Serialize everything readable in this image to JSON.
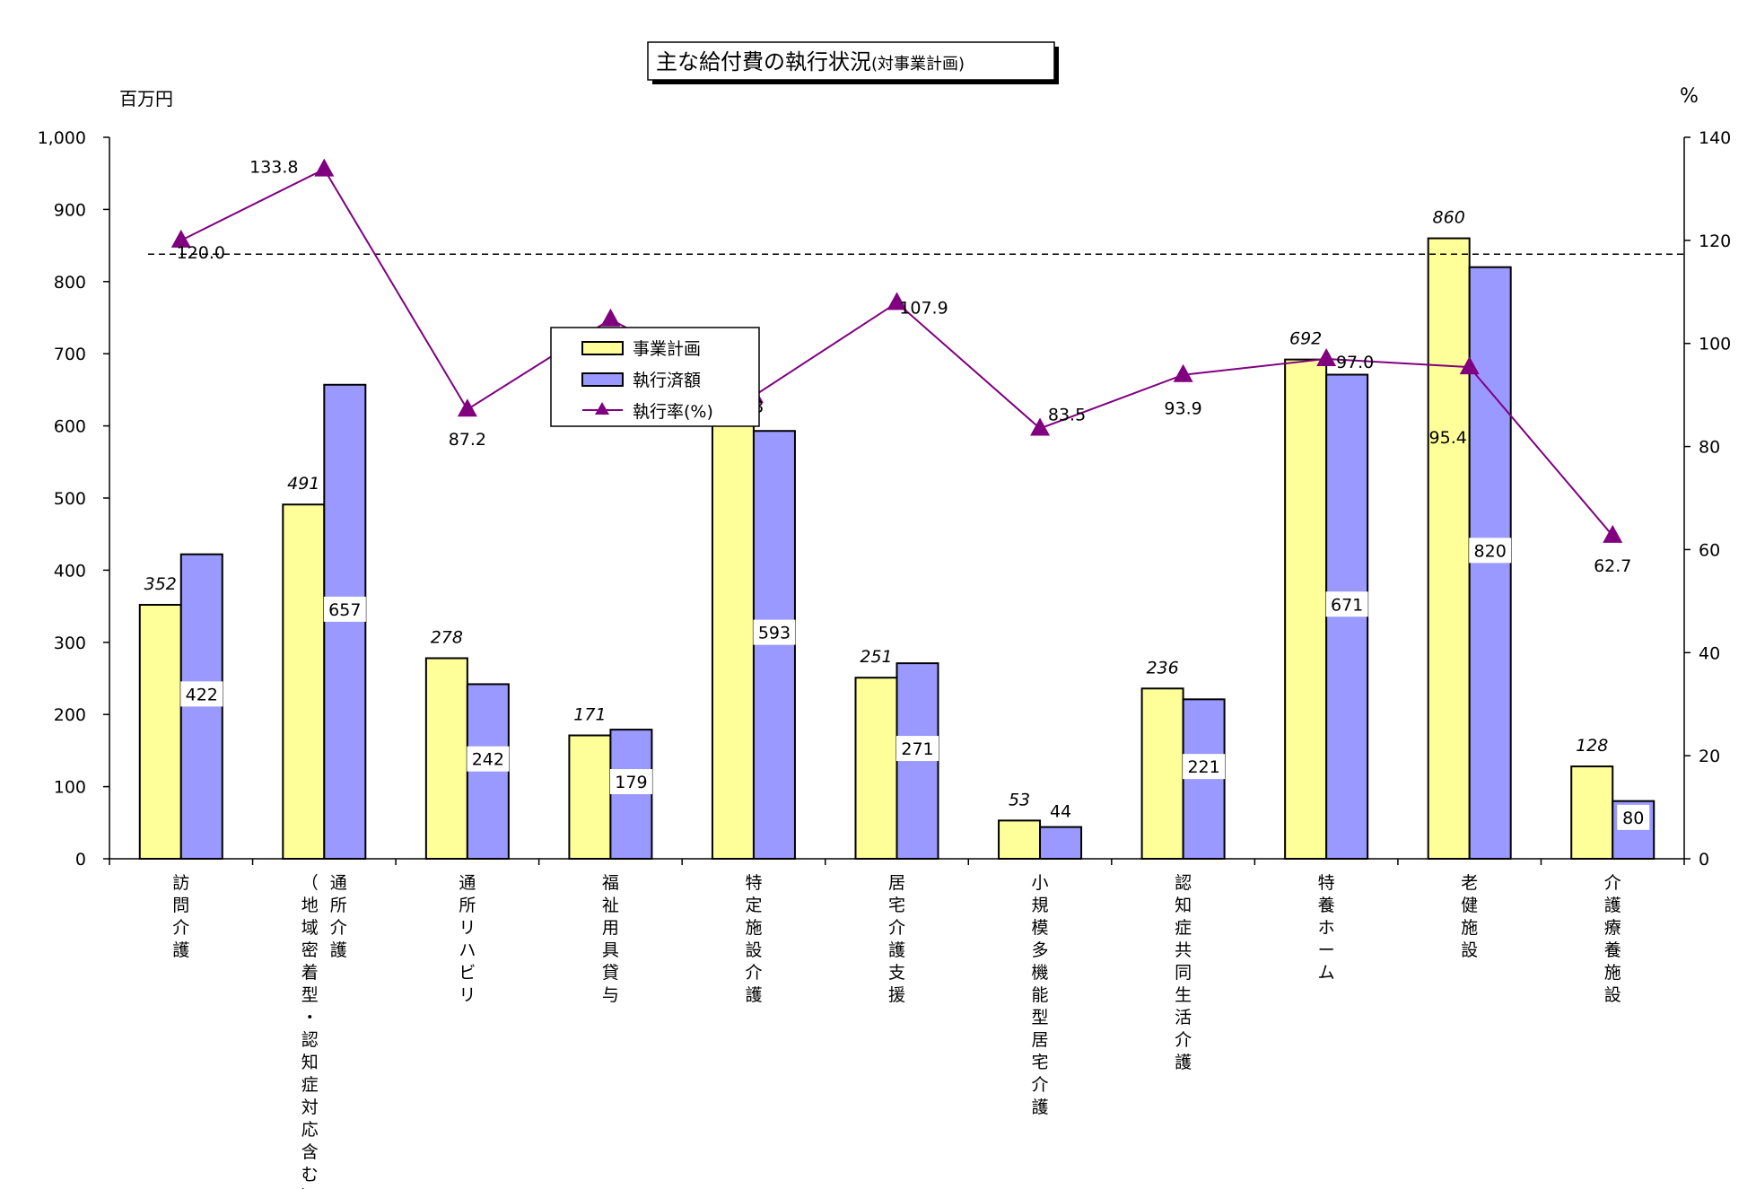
{
  "chart_data": {
    "type": "bar",
    "title": "主な給付費の執行状況",
    "subtitle": "(対事業計画)",
    "ylabel_left": "百万円",
    "ylabel_right": "%",
    "ylim_left": [
      0,
      1000
    ],
    "yticks_left": [
      "0",
      "100",
      "200",
      "300",
      "400",
      "500",
      "600",
      "700",
      "800",
      "900",
      "1,000"
    ],
    "ylim_right": [
      0,
      140
    ],
    "yticks_right": [
      "0",
      "20",
      "40",
      "60",
      "80",
      "100",
      "120",
      "140"
    ],
    "categories": [
      [
        "訪問介護"
      ],
      [
        "通所介護",
        "（地域密着型・認知症対応含む）"
      ],
      [
        "通所リハビリ"
      ],
      [
        "福祉用具貸与"
      ],
      [
        "特定施設介護"
      ],
      [
        "居宅介護支援"
      ],
      [
        "小規模多機能型居宅介護"
      ],
      [
        "認知症共同生活介護"
      ],
      [
        "特養ホーム"
      ],
      [
        "老健施設"
      ],
      [
        "介護療養施設"
      ]
    ],
    "series": [
      {
        "name": "事業計画",
        "type": "bar",
        "axis": "left",
        "color": "#FFFF99",
        "values": [
          352,
          491,
          278,
          171,
          620,
          251,
          53,
          236,
          692,
          860,
          128
        ],
        "labels": [
          "352",
          "491",
          "278",
          "171",
          "",
          "251",
          "53",
          "236",
          "692",
          "860",
          "128"
        ]
      },
      {
        "name": "執行済額",
        "type": "bar",
        "axis": "left",
        "color": "#9999FF",
        "values": [
          422,
          657,
          242,
          179,
          593,
          271,
          44,
          221,
          671,
          820,
          80
        ],
        "labels": [
          "422",
          "657",
          "242",
          "179",
          "593",
          "271",
          "44",
          "221",
          "671",
          "820",
          "80"
        ]
      },
      {
        "name": "執行率(%)",
        "type": "line",
        "axis": "right",
        "color": "#800080",
        "marker": "triangle",
        "values": [
          120.0,
          133.8,
          87.2,
          104.7,
          89.8,
          107.9,
          83.5,
          93.9,
          97.0,
          95.4,
          62.7
        ],
        "labels": [
          "120.0",
          "133.8",
          "87.2",
          "",
          "89.8",
          "107.9",
          "83.5",
          "93.9",
          "97.0",
          "95.4",
          "62.7"
        ]
      }
    ],
    "reference_line": {
      "axis": "left",
      "value": 838,
      "style": "dashed"
    },
    "legend_position": "upper-middle",
    "grid": false
  }
}
